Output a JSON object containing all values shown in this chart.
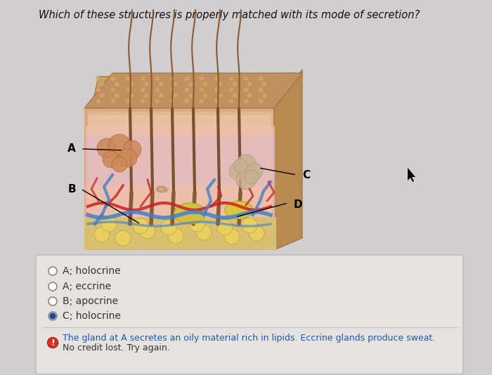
{
  "title": "Which of these structures is properly matched with its mode of secretion?",
  "title_fontsize": 10.5,
  "background_color": "#d0cece",
  "answer_box_color": "#e8e6e3",
  "answer_box_border": "#b8b4b0",
  "options": [
    {
      "text": "A; holocrine",
      "selected": false
    },
    {
      "text": "A; eccrine",
      "selected": false
    },
    {
      "text": "B; apocrine",
      "selected": false
    },
    {
      "text": "C; holocrine",
      "selected": true
    }
  ],
  "option_fontsize": 10,
  "selected_dot_color": "#1a4a8a",
  "feedback_line1": "The gland at A secretes an oily material rich in lipids. Eccrine glands produce sweat.",
  "feedback_line2": "No credit lost. Try again.",
  "feedback_fontsize": 9,
  "feedback_color": "#2255aa",
  "feedback_line2_color": "#333333",
  "skin_bg": "#c9a882",
  "skin_top": "#b8935a",
  "skin_dermis": "#e8b090",
  "skin_hypodermis": "#e8c870",
  "skin_inner_pink": "#f0c0b0",
  "hair_color": "#8b5a2b",
  "blood_red": "#cc2020",
  "blood_blue": "#4080cc",
  "gland_color": "#d4956a",
  "sebaceous_color": "#c8a070",
  "yellow_fat": "#d4b840"
}
